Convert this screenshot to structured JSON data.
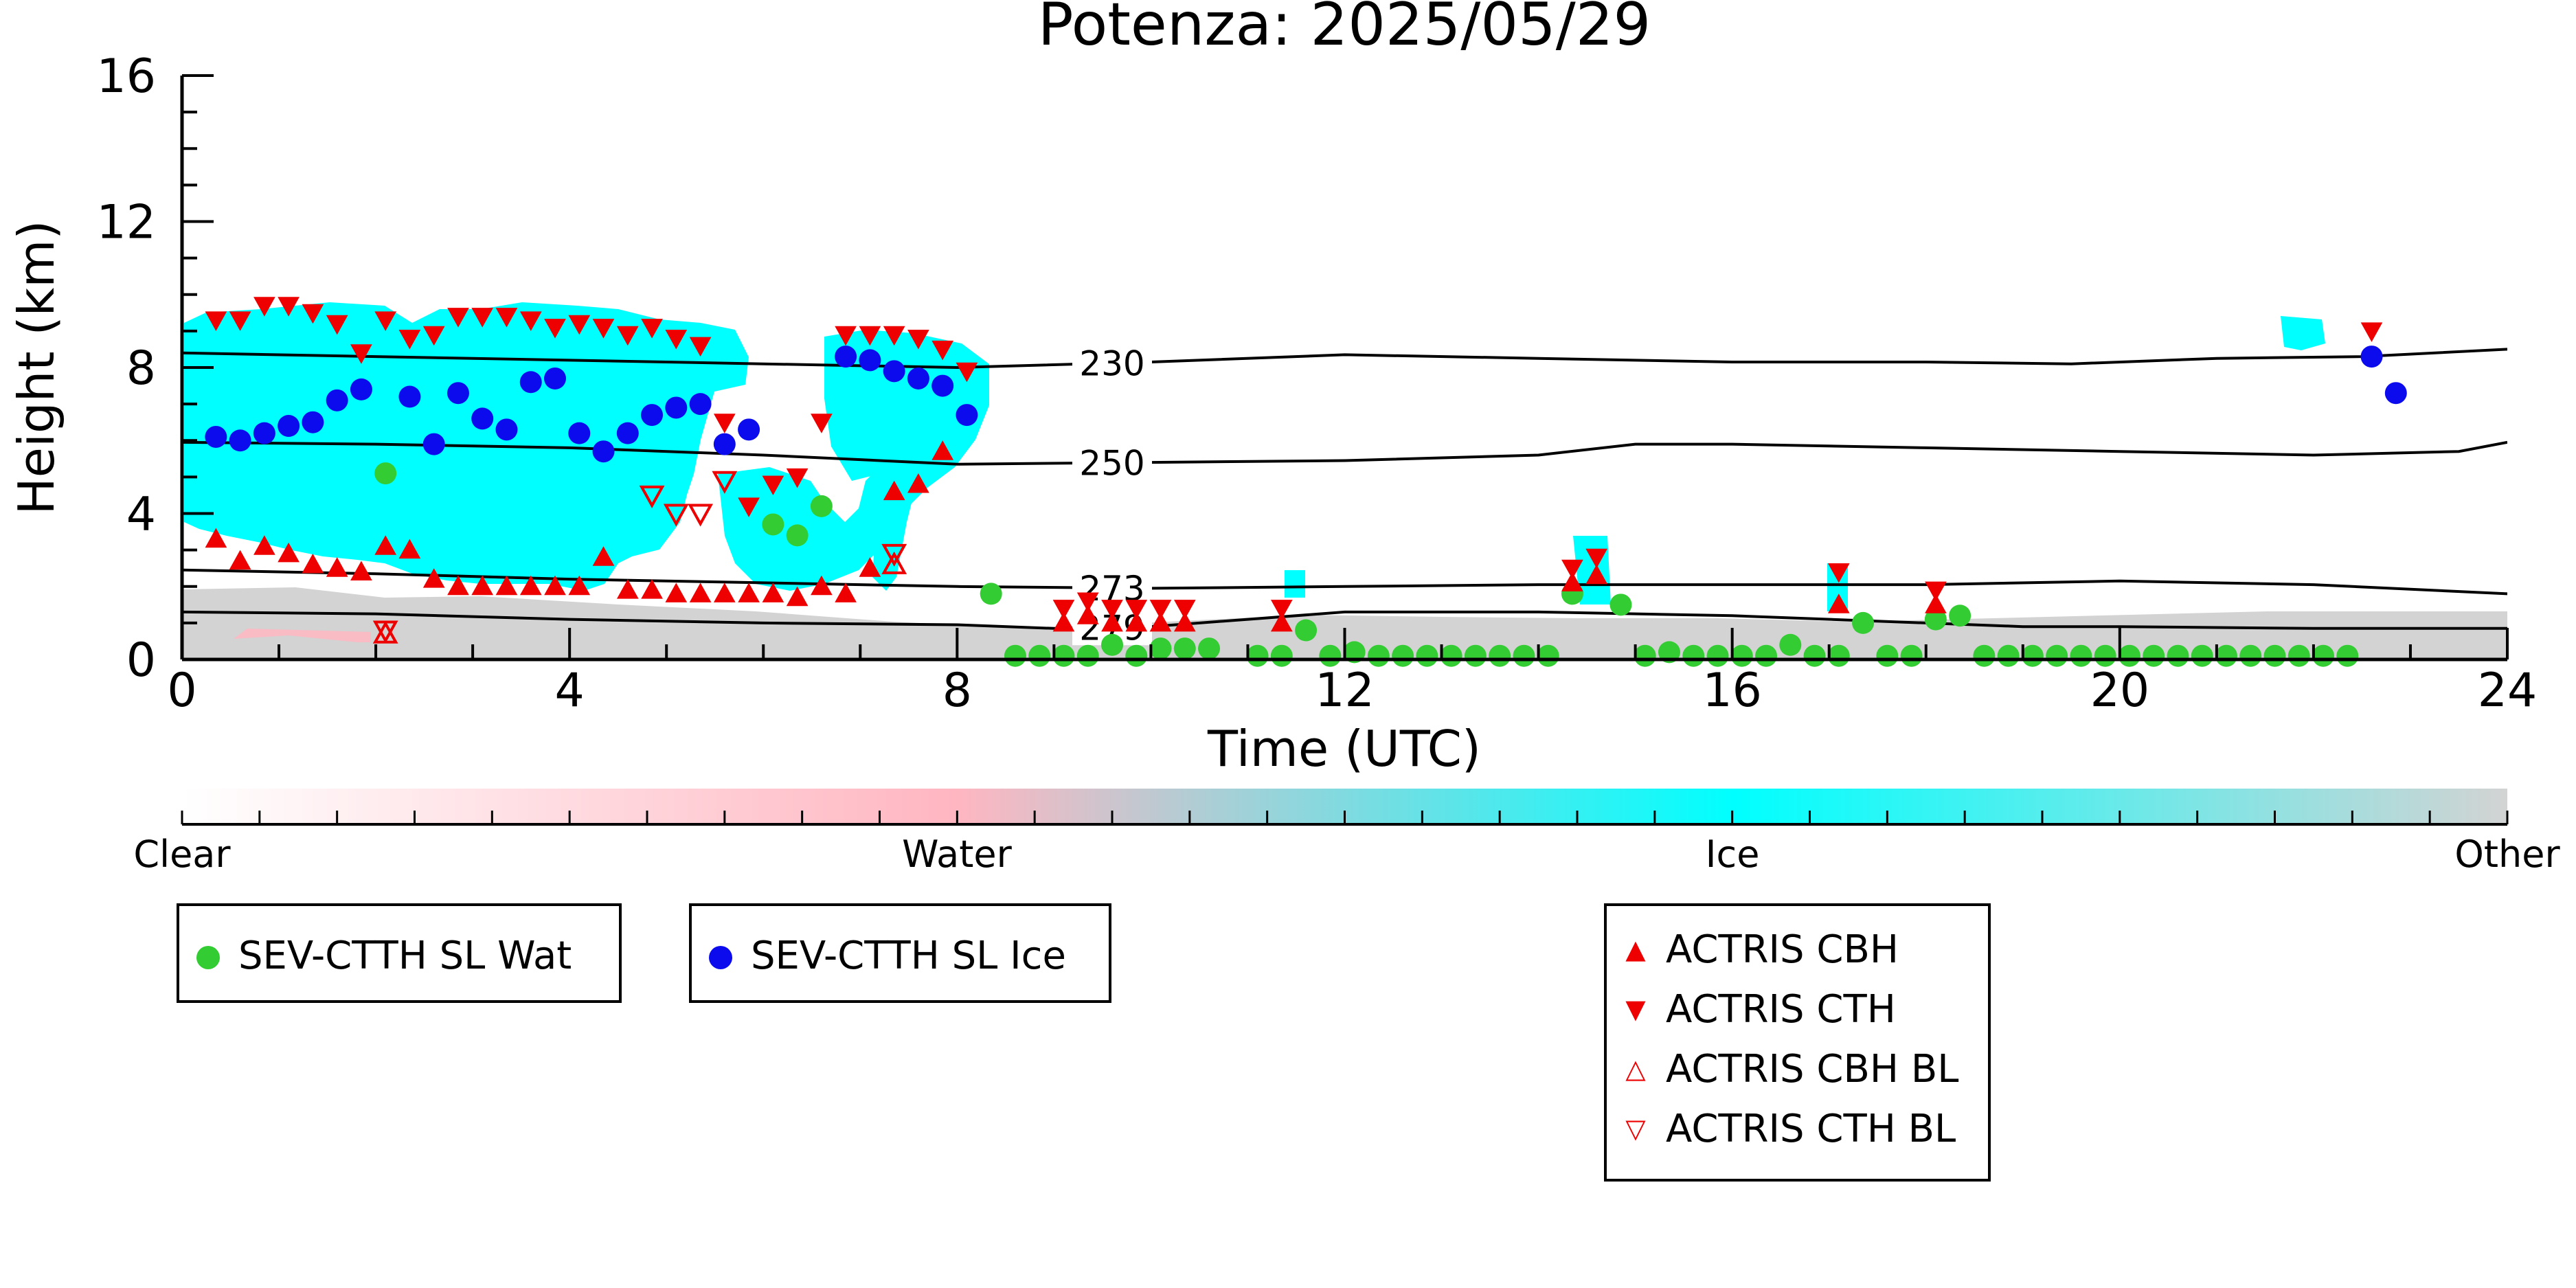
{
  "chart_data": {
    "type": "scatter",
    "title": "Potenza: 2025/05/29",
    "xlabel": "Time (UTC)",
    "ylabel": "Height (km)",
    "xlim": [
      0,
      24
    ],
    "ylim": [
      0,
      16
    ],
    "x_ticks": [
      "0",
      "4",
      "8",
      "12",
      "16",
      "20",
      "24"
    ],
    "y_ticks": [
      "0",
      "4",
      "8",
      "12",
      "16"
    ],
    "contours": [
      {
        "label": "230",
        "x": [
          0,
          2,
          4,
          6,
          8,
          10,
          12,
          14,
          16,
          18,
          19.5,
          21,
          22.5,
          24
        ],
        "y": [
          8.4,
          8.3,
          8.2,
          8.1,
          8.0,
          8.15,
          8.35,
          8.25,
          8.15,
          8.15,
          8.1,
          8.25,
          8.3,
          8.5
        ]
      },
      {
        "label": "250",
        "x": [
          0,
          2,
          4,
          6,
          8,
          10,
          12,
          14,
          15,
          16,
          18,
          20,
          22,
          23.5,
          24
        ],
        "y": [
          5.95,
          5.9,
          5.8,
          5.6,
          5.35,
          5.4,
          5.45,
          5.6,
          5.9,
          5.9,
          5.8,
          5.7,
          5.6,
          5.7,
          5.95
        ]
      },
      {
        "label": "273",
        "x": [
          0,
          2,
          4,
          6,
          8,
          10,
          12,
          14,
          16,
          18,
          20,
          22,
          24
        ],
        "y": [
          2.45,
          2.35,
          2.2,
          2.1,
          2.0,
          1.95,
          2.0,
          2.05,
          2.05,
          2.05,
          2.15,
          2.05,
          1.8
        ]
      },
      {
        "label": "279",
        "x": [
          0,
          2,
          4,
          6,
          8,
          9,
          10,
          11,
          12,
          14,
          16,
          18,
          19,
          20,
          22,
          24
        ],
        "y": [
          1.3,
          1.25,
          1.1,
          1.0,
          0.95,
          0.85,
          0.9,
          1.1,
          1.3,
          1.3,
          1.2,
          1.0,
          0.9,
          0.9,
          0.85,
          0.85
        ]
      }
    ],
    "series": [
      {
        "name": "SEV-CTTH SL Wat",
        "color": "#33cc33",
        "marker": "circle",
        "x": [
          2.1,
          6.1,
          6.35,
          6.6,
          8.35,
          8.6,
          8.85,
          9.1,
          9.35,
          9.6,
          9.85,
          10.1,
          10.35,
          10.6,
          11.1,
          11.35,
          11.6,
          11.85,
          12.1,
          12.35,
          12.6,
          12.85,
          13.1,
          13.35,
          13.6,
          13.85,
          14.1,
          14.35,
          14.85,
          15.1,
          15.35,
          15.6,
          15.85,
          16.1,
          16.35,
          16.6,
          16.85,
          17.1,
          17.35,
          17.6,
          17.85,
          18.1,
          18.35,
          18.6,
          18.85,
          19.1,
          19.35,
          19.6,
          19.85,
          20.1,
          20.35,
          20.6,
          20.85,
          21.1,
          21.35,
          21.6,
          21.85,
          22.1,
          22.35
        ],
        "y": [
          5.1,
          3.7,
          3.4,
          4.2,
          1.8,
          0.1,
          0.1,
          0.1,
          0.1,
          0.4,
          0.1,
          0.3,
          0.3,
          0.3,
          0.1,
          0.1,
          0.8,
          0.1,
          0.2,
          0.1,
          0.1,
          0.1,
          0.1,
          0.1,
          0.1,
          0.1,
          0.1,
          1.8,
          1.5,
          0.1,
          0.2,
          0.1,
          0.1,
          0.1,
          0.1,
          0.4,
          0.1,
          0.1,
          1.0,
          0.1,
          0.1,
          1.1,
          1.2,
          0.1,
          0.1,
          0.1,
          0.1,
          0.1,
          0.1,
          0.1,
          0.1,
          0.1,
          0.1,
          0.1,
          0.1,
          0.1,
          0.1,
          0.1,
          0.1
        ]
      },
      {
        "name": "SEV-CTTH SL Ice",
        "color": "#0b0bee",
        "marker": "circle",
        "x": [
          0.35,
          0.6,
          0.85,
          1.1,
          1.35,
          1.6,
          1.85,
          2.35,
          2.6,
          2.85,
          3.1,
          3.35,
          3.6,
          3.85,
          4.1,
          4.35,
          4.6,
          4.85,
          5.1,
          5.35,
          5.6,
          5.85,
          6.85,
          7.1,
          7.35,
          7.6,
          7.85,
          8.1,
          22.6,
          22.85
        ],
        "y": [
          6.1,
          6.0,
          6.2,
          6.4,
          6.5,
          7.1,
          7.4,
          7.2,
          5.9,
          7.3,
          6.6,
          6.3,
          7.6,
          7.7,
          6.2,
          5.7,
          6.2,
          6.7,
          6.9,
          7.0,
          5.9,
          6.3,
          8.3,
          8.2,
          7.9,
          7.7,
          7.5,
          6.7,
          8.3,
          7.3
        ]
      },
      {
        "name": "ACTRIS CBH",
        "color": "#ee0000",
        "marker": "triangle-up",
        "x": [
          0.35,
          0.6,
          0.85,
          1.1,
          1.35,
          1.6,
          1.85,
          2.1,
          2.35,
          2.6,
          2.85,
          3.1,
          3.35,
          3.6,
          3.85,
          4.1,
          4.35,
          4.6,
          4.85,
          5.1,
          5.35,
          5.6,
          5.85,
          6.1,
          6.35,
          6.6,
          6.85,
          7.1,
          7.35,
          7.6,
          7.85,
          9.1,
          9.35,
          9.6,
          9.85,
          10.1,
          10.35,
          11.35,
          14.35,
          14.6,
          17.1,
          18.1
        ],
        "y": [
          3.3,
          2.7,
          3.1,
          2.9,
          2.6,
          2.5,
          2.4,
          3.1,
          3.0,
          2.2,
          2.0,
          2.0,
          2.0,
          2.0,
          2.0,
          2.0,
          2.8,
          1.9,
          1.9,
          1.8,
          1.8,
          1.8,
          1.8,
          1.8,
          1.7,
          2.0,
          1.8,
          2.5,
          4.6,
          4.8,
          5.7,
          1.0,
          1.2,
          1.0,
          1.0,
          1.0,
          1.0,
          1.0,
          2.1,
          2.3,
          1.5,
          1.5
        ]
      },
      {
        "name": "ACTRIS CTH",
        "color": "#ee0000",
        "marker": "triangle-down",
        "x": [
          0.35,
          0.6,
          0.85,
          1.1,
          1.35,
          1.6,
          1.85,
          2.1,
          2.35,
          2.6,
          2.85,
          3.1,
          3.35,
          3.6,
          3.85,
          4.1,
          4.35,
          4.6,
          4.85,
          5.1,
          5.35,
          5.6,
          5.85,
          6.1,
          6.35,
          6.6,
          6.85,
          7.1,
          7.35,
          7.6,
          7.85,
          8.1,
          9.1,
          9.35,
          9.6,
          9.85,
          10.1,
          10.35,
          11.35,
          14.35,
          14.6,
          17.1,
          18.1,
          22.6
        ],
        "y": [
          9.3,
          9.3,
          9.7,
          9.7,
          9.5,
          9.2,
          8.4,
          9.3,
          8.8,
          8.9,
          9.4,
          9.4,
          9.4,
          9.3,
          9.1,
          9.2,
          9.1,
          8.9,
          9.1,
          8.8,
          8.6,
          6.5,
          4.2,
          4.8,
          5.0,
          6.5,
          8.9,
          8.9,
          8.9,
          8.8,
          8.5,
          7.9,
          1.4,
          1.6,
          1.4,
          1.4,
          1.4,
          1.4,
          1.4,
          2.5,
          2.8,
          2.4,
          1.9,
          9.0
        ]
      },
      {
        "name": "ACTRIS CBH BL",
        "color": "#ee0000",
        "marker": "triangle-up-open",
        "x": [
          2.1,
          7.35
        ],
        "y": [
          0.7,
          2.6
        ]
      },
      {
        "name": "ACTRIS CTH BL",
        "color": "#ee0000",
        "marker": "triangle-down-open",
        "x": [
          2.1,
          4.85,
          5.1,
          5.35,
          5.6,
          7.35
        ],
        "y": [
          0.8,
          4.5,
          4.0,
          4.0,
          4.9,
          2.9
        ]
      }
    ],
    "colorbar": {
      "labels": [
        "Clear",
        "Water",
        "Ice",
        "Other"
      ],
      "colors": [
        "#ffffff",
        "#ffb6c1",
        "#00ffff",
        "#d3d3d3"
      ]
    },
    "legends": [
      [
        "SEV-CTTH SL Wat"
      ],
      [
        "SEV-CTTH SL Ice"
      ],
      [
        "ACTRIS CBH",
        "ACTRIS CTH",
        "ACTRIS CBH BL",
        "ACTRIS CTH BL"
      ]
    ],
    "grid": false
  }
}
